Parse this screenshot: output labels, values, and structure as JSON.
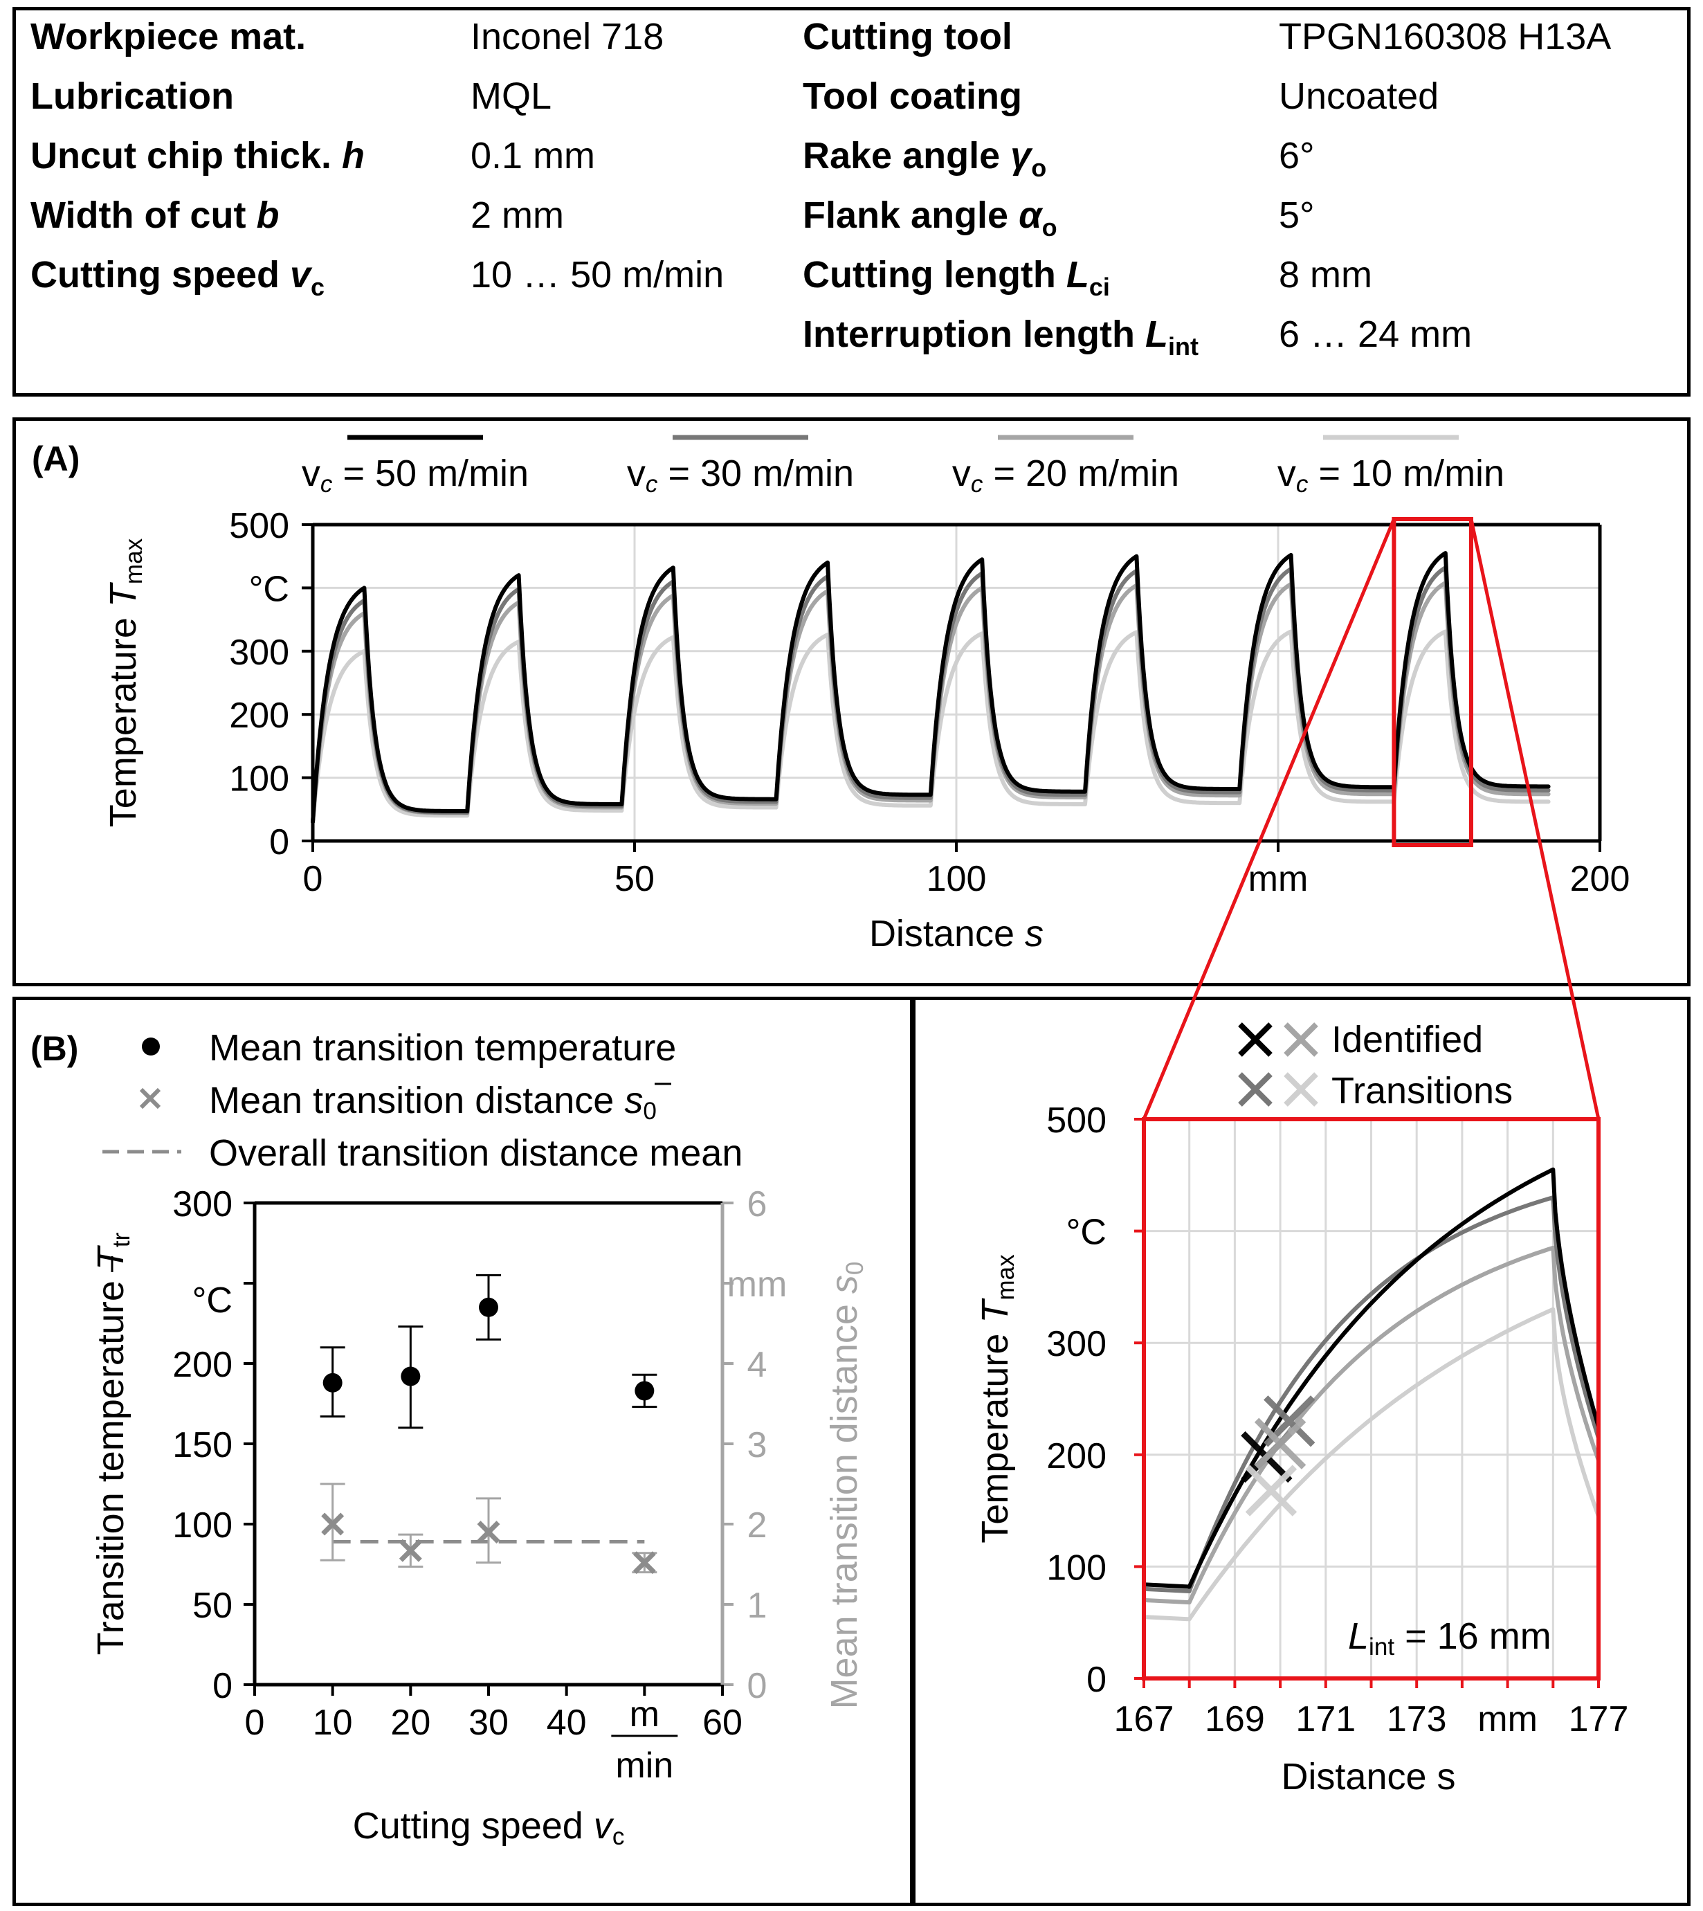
{
  "params": {
    "left": [
      {
        "label": "Workpiece mat.",
        "value": "Inconel 718"
      },
      {
        "label": "Lubrication",
        "value": "MQL"
      },
      {
        "label": "Uncut chip thick. ",
        "sym": "h",
        "value": "0.1 mm"
      },
      {
        "label": "Width of cut ",
        "sym": "b",
        "value": "2 mm"
      },
      {
        "label": "Cutting speed ",
        "sym": "v",
        "sub": "c",
        "value": "10 … 50 m/min"
      }
    ],
    "right": [
      {
        "label": "Cutting tool",
        "value": "TPGN160308 H13A"
      },
      {
        "label": "Tool coating",
        "value": "Uncoated"
      },
      {
        "label": "Rake angle ",
        "sym": "γ",
        "sub": "o",
        "value": "6°"
      },
      {
        "label": "Flank angle ",
        "sym": "α",
        "sub": "o",
        "value": "5°"
      },
      {
        "label": "Cutting length ",
        "sym": "L",
        "sub": "ci",
        "value": "8 mm"
      },
      {
        "label": "Interruption length ",
        "sym": "L",
        "sub": "int",
        "value": "6 … 24 mm"
      }
    ]
  },
  "colors": {
    "v50": "#000000",
    "v30": "#777777",
    "v20": "#a5a5a5",
    "v10": "#cfcfcf",
    "zoom": "#e8141a",
    "axis_gray": "#a5a5a5",
    "grid": "#d9d9d9"
  },
  "chart_data": [
    {
      "id": "A",
      "type": "line",
      "panel_label": "(A)",
      "legend": [
        {
          "pre": "v",
          "sub": "c",
          "post": " = 50 m/min",
          "color_key": "v50"
        },
        {
          "pre": "v",
          "sub": "c",
          "post": " = 30 m/min",
          "color_key": "v30"
        },
        {
          "pre": "v",
          "sub": "c",
          "post": " = 20 m/min",
          "color_key": "v20"
        },
        {
          "pre": "v",
          "sub": "c",
          "post": " = 10 m/min",
          "color_key": "v10"
        }
      ],
      "ylabel": "Temperature ",
      "ylabel_sym": "T",
      "ylabel_sub": "max",
      "yunit": "°C",
      "xlabel": "Distance ",
      "xlabel_sym": "s",
      "xunit": "mm",
      "xlim": [
        0,
        200
      ],
      "ylim": [
        0,
        500
      ],
      "xticks": [
        0,
        50,
        100,
        200
      ],
      "yticks": [
        0,
        100,
        200,
        300,
        500
      ],
      "cutting_length": 8,
      "interruption_length": 16,
      "cycles": 8,
      "x_end": 192,
      "series": [
        {
          "name": "v_c = 50 m/min",
          "color_key": "v50",
          "peaks": [
            400,
            420,
            432,
            440,
            445,
            450,
            452,
            455
          ],
          "valleys": [
            47,
            58,
            66,
            73,
            78,
            82,
            85,
            86
          ],
          "start": 30
        },
        {
          "name": "v_c = 30 m/min",
          "color_key": "v30",
          "peaks": [
            380,
            398,
            410,
            418,
            423,
            427,
            430,
            432
          ],
          "valleys": [
            45,
            55,
            62,
            68,
            73,
            77,
            80,
            80
          ],
          "start": 30
        },
        {
          "name": "v_c = 20 m/min",
          "color_key": "v20",
          "peaks": [
            360,
            377,
            388,
            395,
            400,
            404,
            406,
            408
          ],
          "valleys": [
            44,
            53,
            59,
            64,
            69,
            72,
            74,
            74
          ],
          "start": 30
        },
        {
          "name": "v_c = 10 m/min",
          "color_key": "v10",
          "peaks": [
            300,
            315,
            322,
            326,
            328,
            330,
            331,
            331
          ],
          "valleys": [
            40,
            48,
            53,
            56,
            58,
            60,
            62,
            62
          ],
          "start": 30
        }
      ],
      "zoom_range_x": [
        168,
        180
      ]
    },
    {
      "id": "B",
      "type": "scatter",
      "panel_label": "(B)",
      "legend": [
        {
          "text": "Mean transition temperature",
          "marker": "dot"
        },
        {
          "text": "Mean transition distance ",
          "sym": "s",
          "sub": "0",
          "marker": "cross"
        },
        {
          "text": "Overall transition distance mean",
          "marker": "dash"
        }
      ],
      "ylabel": "Transition temperature ",
      "ylabel_sym": "T",
      "ylabel_sub": "tr",
      "yunit": "°C",
      "y2label": "Mean transition distance ",
      "y2label_sym": "s",
      "y2label_sub": "0",
      "y2unit": "mm",
      "xlabel": "Cutting speed ",
      "xlabel_sym": "v",
      "xlabel_sub": "c",
      "xunit_num": "m",
      "xunit_den": "min",
      "xlim": [
        0,
        60
      ],
      "ylim": [
        0,
        300
      ],
      "y2lim": [
        0,
        6
      ],
      "xticks": [
        0,
        10,
        20,
        30,
        40,
        60
      ],
      "yticks": [
        0,
        50,
        100,
        150,
        200,
        300
      ],
      "y2ticks": [
        0,
        1,
        2,
        3,
        4,
        6
      ],
      "temperature": [
        {
          "x": 10,
          "y": 188,
          "err_low": 21,
          "err_high": 22
        },
        {
          "x": 20,
          "y": 192,
          "err_low": 32,
          "err_high": 31
        },
        {
          "x": 30,
          "y": 235,
          "err_low": 20,
          "err_high": 20
        },
        {
          "x": 50,
          "y": 183,
          "err_low": 10,
          "err_high": 10
        }
      ],
      "distance": [
        {
          "x": 10,
          "y": 2.0,
          "err_low": 0.45,
          "err_high": 0.5
        },
        {
          "x": 20,
          "y": 1.67,
          "err_low": 0.2,
          "err_high": 0.2
        },
        {
          "x": 30,
          "y": 1.9,
          "err_low": 0.38,
          "err_high": 0.42
        },
        {
          "x": 50,
          "y": 1.52,
          "err_low": 0.12,
          "err_high": 0.12
        }
      ],
      "overall_distance_mean": 1.78,
      "overall_x_range": [
        10,
        50
      ]
    },
    {
      "id": "C",
      "type": "line",
      "legend": [
        {
          "text": "Identified",
          "colors": [
            "v50",
            "v20"
          ]
        },
        {
          "text": "Transitions",
          "colors": [
            "v30",
            "v10"
          ]
        }
      ],
      "ylabel": "Temperature ",
      "ylabel_sym": "T",
      "ylabel_sub": "max",
      "yunit": "°C",
      "xlabel": "Distance s",
      "xunit": "mm",
      "xlim": [
        167,
        177
      ],
      "ylim": [
        0,
        500
      ],
      "xticks": [
        167,
        169,
        171,
        173,
        177
      ],
      "yticks": [
        0,
        100,
        200,
        300,
        500
      ],
      "annotation": {
        "sym": "L",
        "sub": "int",
        "text": " = 16 mm"
      },
      "cut_start": 168,
      "cut_end": 176,
      "series": [
        {
          "name": "v_c = 50 m/min",
          "color_key": "v50",
          "start_temp": 84,
          "end_temp": 82,
          "peak": 455,
          "final": 225,
          "k": 0.5,
          "transition": {
            "x": 169.7,
            "y": 198
          }
        },
        {
          "name": "v_c = 30 m/min",
          "color_key": "v30",
          "start_temp": 80,
          "end_temp": 78,
          "peak": 430,
          "final": 215,
          "k": 0.75,
          "transition": {
            "x": 170.2,
            "y": 230
          }
        },
        {
          "name": "v_c = 20 m/min",
          "color_key": "v20",
          "start_temp": 70,
          "end_temp": 68,
          "peak": 385,
          "final": 195,
          "k": 0.65,
          "transition": {
            "x": 170.0,
            "y": 210
          }
        },
        {
          "name": "v_c = 10 m/min",
          "color_key": "v10",
          "start_temp": 55,
          "end_temp": 53,
          "peak": 330,
          "final": 145,
          "k": 0.4,
          "transition": {
            "x": 169.8,
            "y": 168
          }
        }
      ]
    }
  ]
}
